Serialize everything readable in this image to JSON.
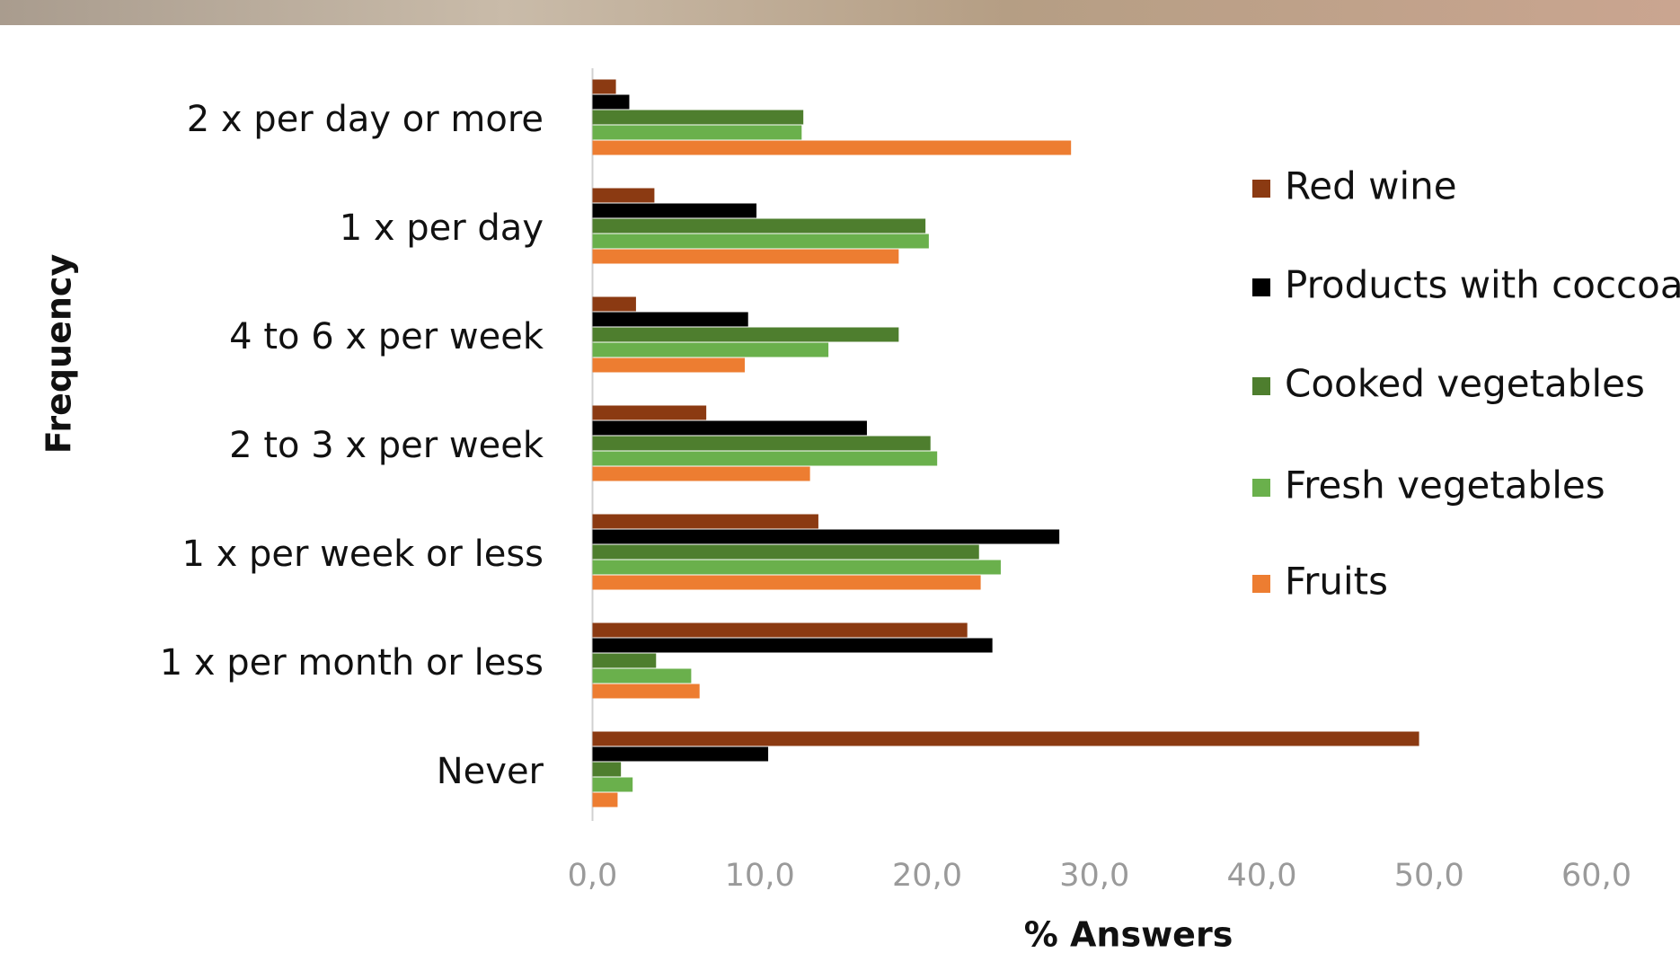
{
  "chart_data": {
    "type": "barh",
    "xlabel": "% Answers",
    "ylabel": "Frequency",
    "categories": [
      "2 x per day or more",
      "1 x per day",
      "4 to 6 x per week",
      "2 to 3 x per week",
      "1 x per week or less",
      "1 x per month or less",
      "Never"
    ],
    "series": [
      {
        "name": "Red wine",
        "color": "#8b3a12",
        "values": [
          1.4,
          3.7,
          2.6,
          6.8,
          13.5,
          22.4,
          49.4
        ]
      },
      {
        "name": "Products with coccoa",
        "color": "#000000",
        "values": [
          2.2,
          9.8,
          9.3,
          16.4,
          27.9,
          23.9,
          10.5
        ]
      },
      {
        "name": "Cooked vegetables",
        "color": "#4e7e2e",
        "values": [
          12.6,
          19.9,
          18.3,
          20.2,
          23.1,
          3.8,
          1.7
        ]
      },
      {
        "name": "Fresh vegetables",
        "color": "#6ab04c",
        "values": [
          12.5,
          20.1,
          14.1,
          20.6,
          24.4,
          5.9,
          2.4
        ]
      },
      {
        "name": "Fruits",
        "color": "#ed7d31",
        "values": [
          28.6,
          18.3,
          9.1,
          13.0,
          23.2,
          6.4,
          1.5
        ]
      }
    ],
    "xlim": [
      0,
      60
    ],
    "xticks": [
      {
        "value": 0,
        "label": "0,0"
      },
      {
        "value": 10,
        "label": "10,0"
      },
      {
        "value": 20,
        "label": "20,0"
      },
      {
        "value": 30,
        "label": "30,0"
      },
      {
        "value": 40,
        "label": "40,0"
      },
      {
        "value": 50,
        "label": "50,0"
      },
      {
        "value": 60,
        "label": "60,0"
      }
    ],
    "legend": "right"
  }
}
